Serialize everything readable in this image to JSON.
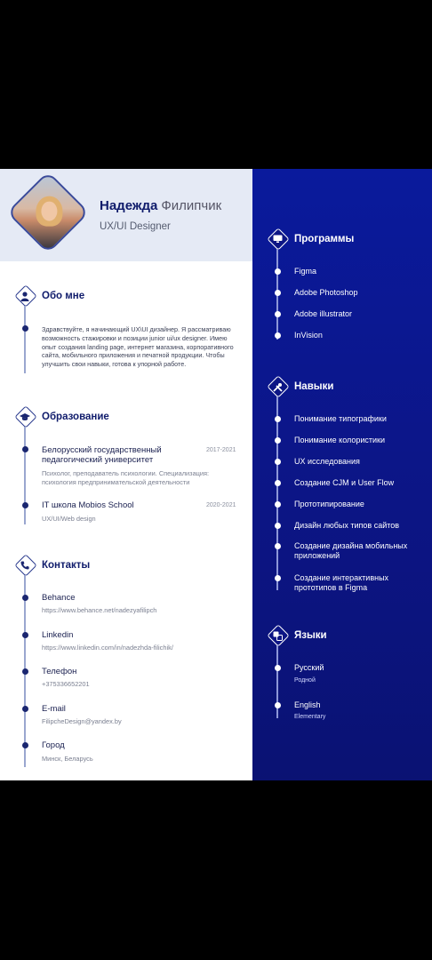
{
  "header": {
    "first_name": "Надежда",
    "last_name": "Филипчик",
    "role": "UX/UI Designer"
  },
  "about": {
    "title": "Обо мне",
    "text": "Здравствуйте, я начинающий UX\\UI дизайнер. Я рассматриваю возможность стажировки и позиции junior ui/ux designer. Имею опыт создания landing page, интернет магазина, корпоративного сайта, мобильного приложения и печатной продукции. Чтобы улучшить свои навыки, готова к упорной работе."
  },
  "education": {
    "title": "Образование",
    "items": [
      {
        "title": "Белорусский государственный педагогический университет",
        "years": "2017-2021",
        "sub": "Психолог, преподаватель психологии. Специализация: психология предпринимательской деятельности"
      },
      {
        "title": "IT школа Mobios School",
        "years": "2020-2021",
        "sub": "UX/UI/Web design"
      }
    ]
  },
  "contacts": {
    "title": "Контакты",
    "items": [
      {
        "label": "Behance",
        "value": "https://www.behance.net/nadezyafilipch"
      },
      {
        "label": "Linkedin",
        "value": "https://www.linkedin.com/in/nadezhda-filichik/"
      },
      {
        "label": "Телефон",
        "value": "+375336652201"
      },
      {
        "label": "E-mail",
        "value": "FilipcheDesign@yandex.by"
      },
      {
        "label": "Город",
        "value": "Минск, Беларусь"
      }
    ]
  },
  "programs": {
    "title": "Программы",
    "items": [
      "Figma",
      "Adobe Photoshop",
      "Adobe illustrator",
      "InVision"
    ]
  },
  "skills": {
    "title": "Навыки",
    "items": [
      "Понимание типографики",
      "Понимание колористики",
      "UX исследования",
      "Создание CJM и User Flow",
      "Прототипирование",
      "Дизайн любых типов сайтов",
      "Создание дизайна мобильных приложений",
      "Создание интерактивных прототипов в Figma"
    ]
  },
  "languages": {
    "title": "Языки",
    "items": [
      {
        "name": "Русский",
        "level": "Родной"
      },
      {
        "name": "English",
        "level": "Elementary"
      }
    ]
  },
  "icons": {
    "about": "user-icon",
    "education": "graduation-cap-icon",
    "contacts": "phone-icon",
    "programs": "monitor-icon",
    "skills": "tools-icon",
    "languages": "translate-icon"
  },
  "colors": {
    "navy": "#0c1585",
    "header_band": "#e5eaf5",
    "text_dark": "#0f1b6b"
  }
}
